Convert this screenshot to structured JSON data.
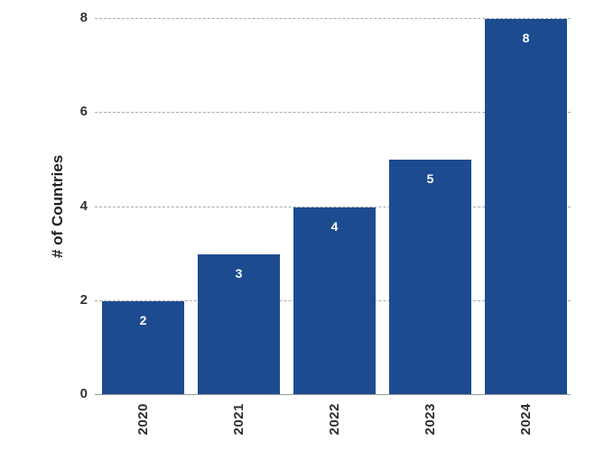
{
  "chart_data": {
    "type": "bar",
    "categories": [
      "2020",
      "2021",
      "2022",
      "2023",
      "2024"
    ],
    "values": [
      2,
      3,
      4,
      5,
      8
    ],
    "bar_labels": [
      "2",
      "3",
      "4",
      "5",
      "8"
    ],
    "xlabel": "",
    "ylabel": "# of Countries",
    "ylim": [
      0,
      8
    ],
    "yticks": [
      0,
      2,
      4,
      6,
      8
    ],
    "grid": "horizontal-dashed",
    "legend": "none",
    "colors": {
      "bar": "#1d4b90",
      "bar_value_label": "#ffffff",
      "gridline": "#a8a8a8",
      "axis_line": "#9a9a9a",
      "tick_text": "#333333"
    }
  }
}
